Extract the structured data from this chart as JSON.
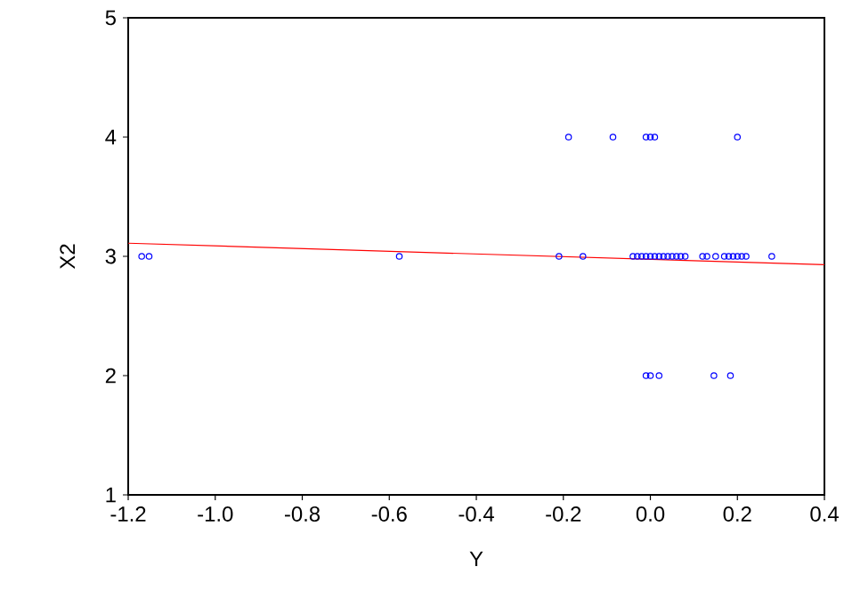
{
  "chart_data": {
    "type": "scatter",
    "xlabel": "Y",
    "ylabel": "X2",
    "xlim": [
      -1.2,
      0.4
    ],
    "ylim": [
      1,
      5
    ],
    "xticks": [
      -1.2,
      {
        "value": -1.0,
        "label": "-1.0"
      },
      -0.8,
      -0.6,
      -0.4,
      -0.2,
      {
        "value": 0.0,
        "label": "0.0"
      },
      0.2,
      0.4
    ],
    "yticks": [
      1,
      2,
      3,
      4,
      5
    ],
    "grid": false,
    "series": [
      {
        "marker": "circle",
        "color": "#0000ff",
        "x": [
          -0.188,
          -0.086,
          -0.01,
          0.0,
          0.01,
          0.2,
          -1.169,
          -1.152,
          -0.577,
          -0.21,
          -0.155,
          -0.04,
          -0.03,
          -0.02,
          -0.01,
          0.0,
          0.01,
          0.02,
          0.03,
          0.04,
          0.05,
          0.06,
          0.07,
          0.08,
          0.12,
          0.13,
          0.15,
          0.17,
          0.18,
          0.19,
          0.2,
          0.21,
          0.22,
          0.279,
          -0.01,
          0.0,
          0.02,
          0.146,
          0.184
        ],
        "values": [
          4,
          4,
          4,
          4,
          4,
          4,
          3,
          3,
          3,
          3,
          3,
          3,
          3,
          3,
          3,
          3,
          3,
          3,
          3,
          3,
          3,
          3,
          3,
          3,
          3,
          3,
          3,
          3,
          3,
          3,
          3,
          3,
          3,
          3,
          2,
          2,
          2,
          2,
          2
        ]
      },
      {
        "type": "line",
        "marker": "none",
        "color": "#ff0000",
        "x": [
          -1.2,
          0.4
        ],
        "values": [
          3.11,
          2.93
        ]
      }
    ]
  }
}
